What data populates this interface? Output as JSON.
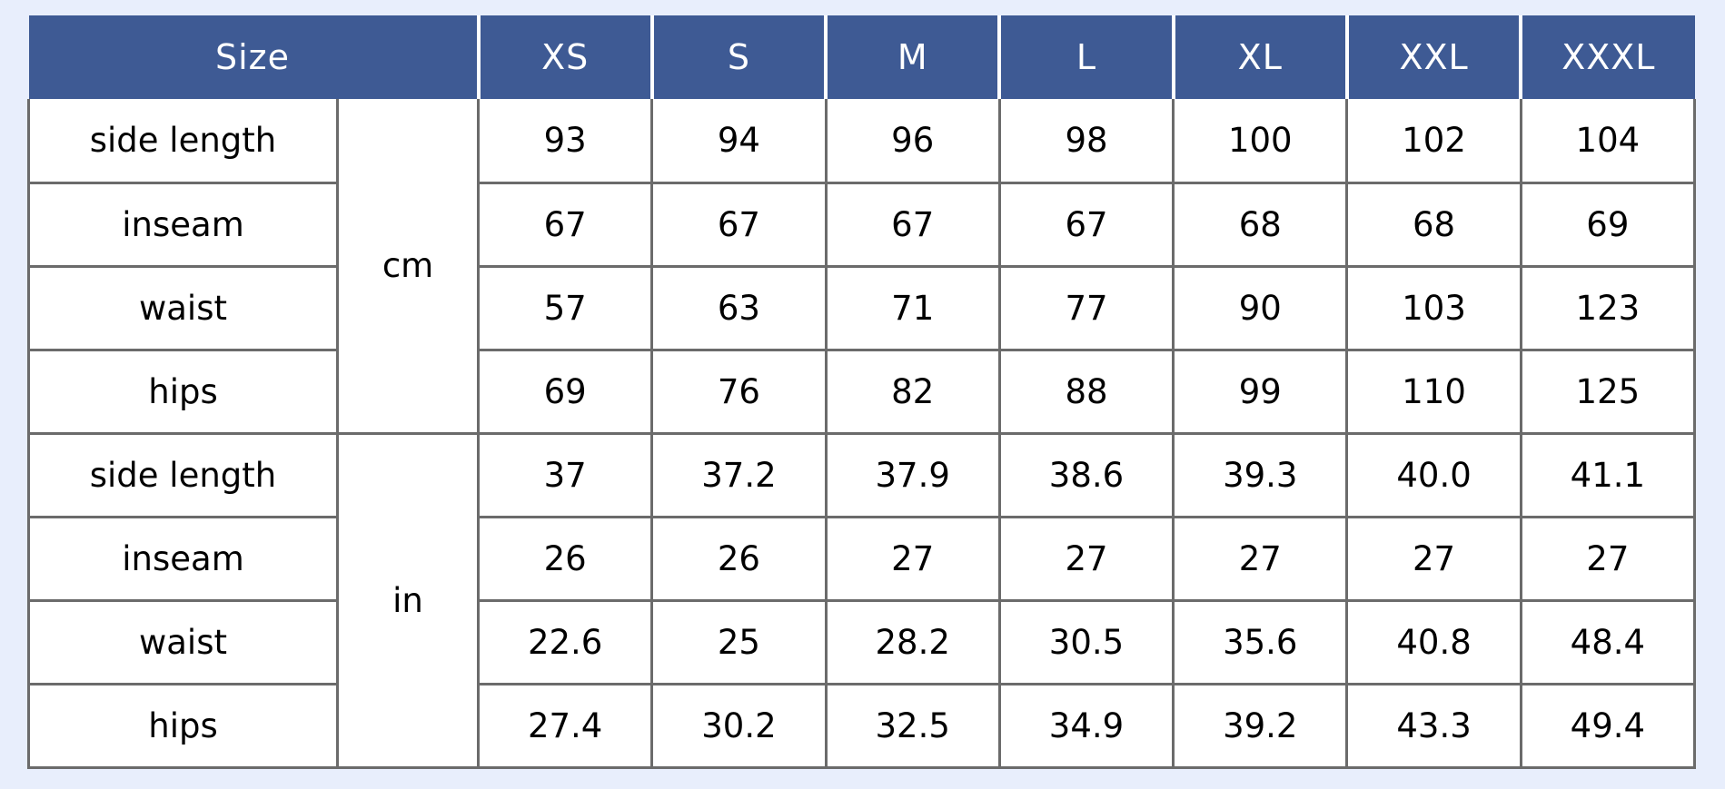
{
  "chart_data": {
    "type": "table",
    "header": {
      "size_label": "Size",
      "size_columns": [
        "XS",
        "S",
        "M",
        "L",
        "XL",
        "XXL",
        "XXXL"
      ]
    },
    "sections": [
      {
        "unit": "cm",
        "rows": [
          {
            "label": "side length",
            "values": [
              "93",
              "94",
              "96",
              "98",
              "100",
              "102",
              "104"
            ]
          },
          {
            "label": "inseam",
            "values": [
              "67",
              "67",
              "67",
              "67",
              "68",
              "68",
              "69"
            ]
          },
          {
            "label": "waist",
            "values": [
              "57",
              "63",
              "71",
              "77",
              "90",
              "103",
              "123"
            ]
          },
          {
            "label": "hips",
            "values": [
              "69",
              "76",
              "82",
              "88",
              "99",
              "110",
              "125"
            ]
          }
        ]
      },
      {
        "unit": "in",
        "rows": [
          {
            "label": "side length",
            "values": [
              "37",
              "37.2",
              "37.9",
              "38.6",
              "39.3",
              "40.0",
              "41.1"
            ]
          },
          {
            "label": "inseam",
            "values": [
              "26",
              "26",
              "27",
              "27",
              "27",
              "27",
              "27"
            ]
          },
          {
            "label": "waist",
            "values": [
              "22.6",
              "25",
              "28.2",
              "30.5",
              "35.6",
              "40.8",
              "48.4"
            ]
          },
          {
            "label": "hips",
            "values": [
              "27.4",
              "30.2",
              "32.5",
              "34.9",
              "39.2",
              "43.3",
              "49.4"
            ]
          }
        ]
      }
    ],
    "layout": {
      "grid": "on",
      "header_position": "top"
    },
    "colors": {
      "header_background": "#3e5a94",
      "header_text": "#ffffff",
      "header_separator": "#ffffff",
      "body_border": "#6b6b6b",
      "cell_background": "#ffffff",
      "page_background": "#e8eefc",
      "body_text": "#000000"
    }
  }
}
